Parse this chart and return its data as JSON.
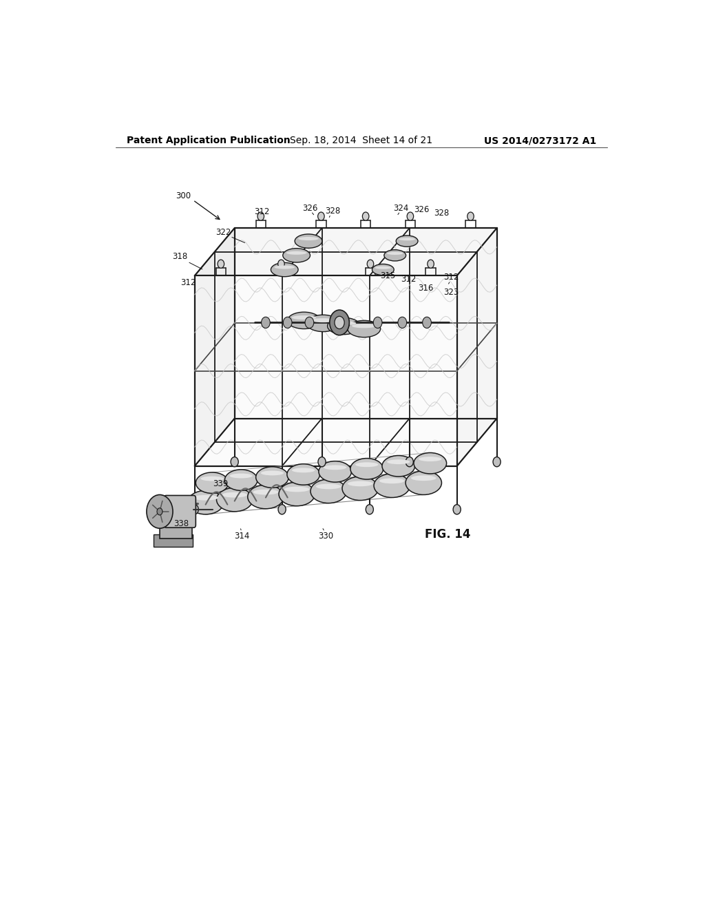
{
  "header_left": "Patent Application Publication",
  "header_center": "Sep. 18, 2014  Sheet 14 of 21",
  "header_right": "US 2014/0273172 A1",
  "fig_label": "FIG. 14",
  "bg_color": "#ffffff",
  "line_color": "#1a1a1a",
  "header_fontsize": 10,
  "fig_label_fontsize": 12,
  "frame_color": "#1a1a1a",
  "fill_light": "#e8e8e8",
  "fill_mid": "#d0d0d0",
  "line_width": 1.5
}
